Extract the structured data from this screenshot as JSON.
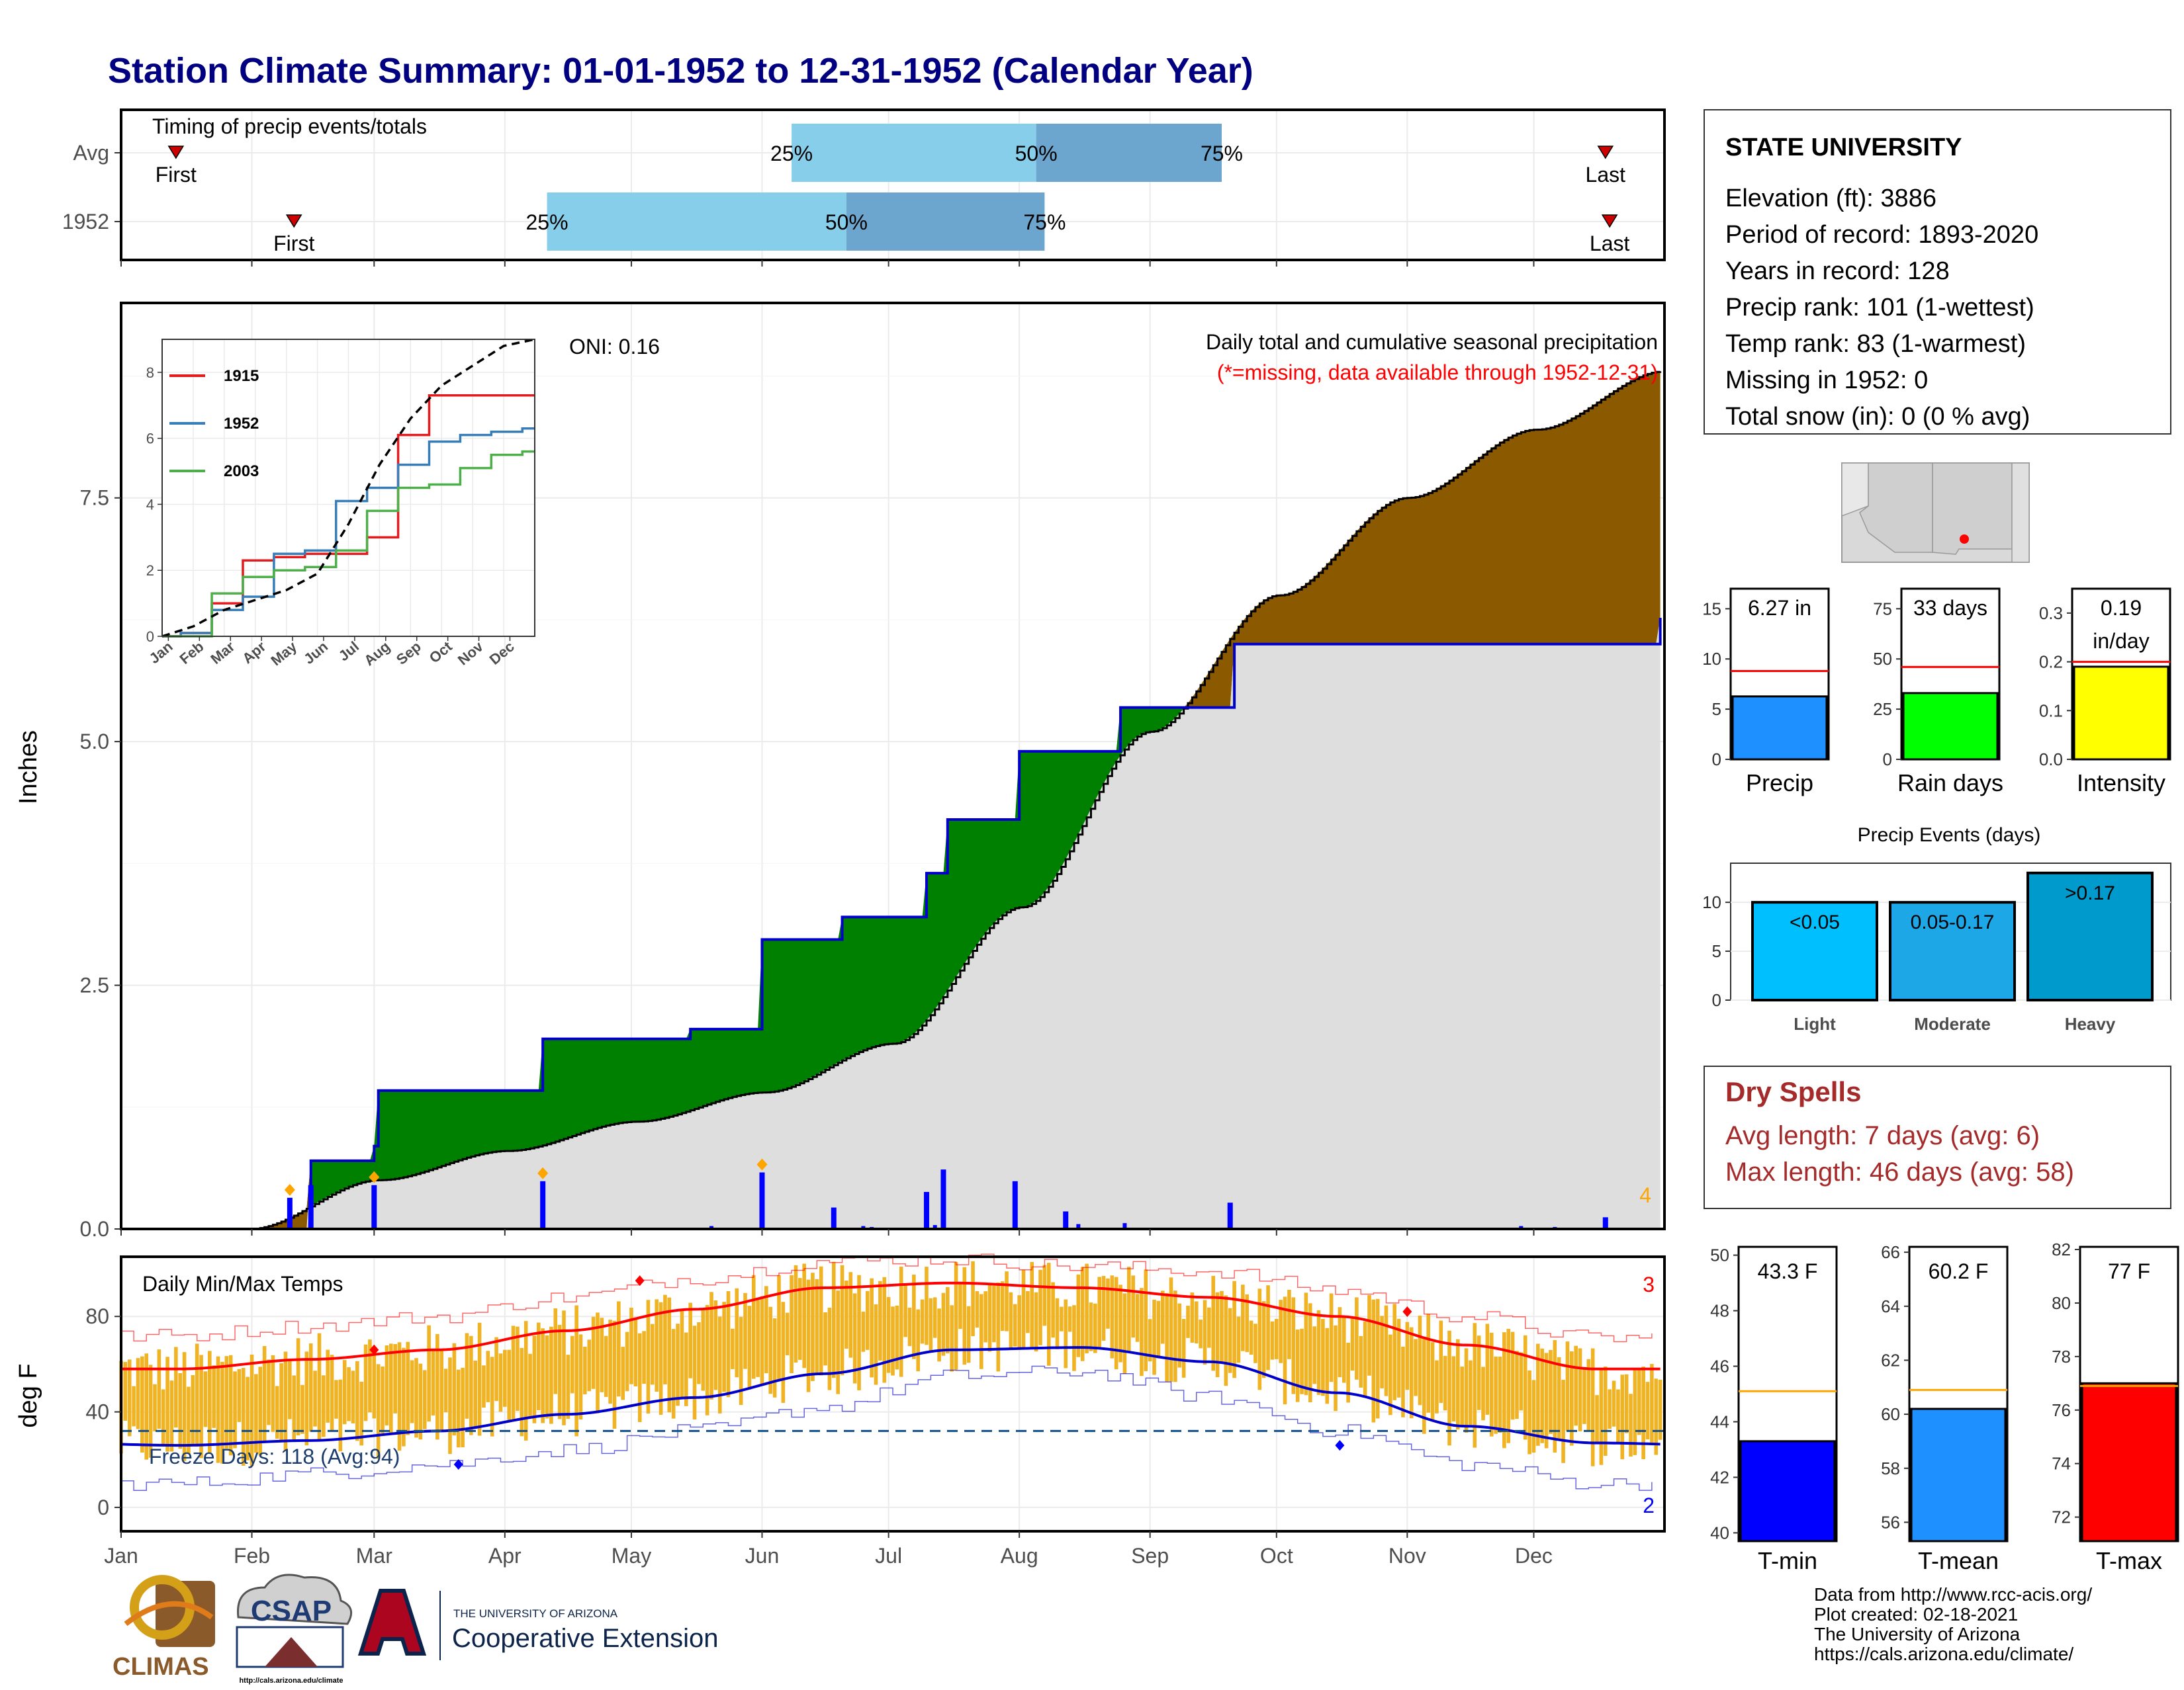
{
  "title": "Station Climate Summary: 01-01-1952 to 12-31-1952 (Calendar Year)",
  "colors": {
    "title": "#000080",
    "pct_light": "#87ceeb",
    "pct_dark": "#6ca5cd",
    "excess": "#008000",
    "deficit": "#8b5a00",
    "normal_fill": "#dedede",
    "precip_bar": "#0000ff",
    "temp_bar": "#f0b323",
    "tmax_line": "#ff0000",
    "tmin_line": "#0000cd",
    "freeze_line": "#104e8b",
    "marker": "#ffa500"
  },
  "timing_panel": {
    "title": "Timing of precip events/totals",
    "rows": [
      {
        "label": "Avg",
        "first_label": "First",
        "last_label": "Last",
        "first_day": 14,
        "last_day": 353,
        "p25_day": 160,
        "p50_day": 218,
        "p75_day": 262,
        "p25_label": "25%",
        "p50_label": "50%",
        "p75_label": "75%"
      },
      {
        "label": "1952",
        "first_label": "First",
        "last_label": "Last",
        "first_day": 42,
        "last_day": 354,
        "p25_day": 102,
        "p50_day": 173,
        "p75_day": 220,
        "p25_label": "25%",
        "p50_label": "50%",
        "p75_label": "75%"
      }
    ]
  },
  "precip_panel": {
    "ylabel": "Inches",
    "yticks": [
      "0.0",
      "2.5",
      "5.0",
      "7.5"
    ],
    "subtitle": "Daily total and cumulative seasonal precipitation",
    "note": "(*=missing, data available through 1952-12-31)",
    "oni": "ONI: 0.16",
    "corner_count": "4"
  },
  "inset": {
    "yticks": [
      "0",
      "2",
      "4",
      "6",
      "8"
    ],
    "months": [
      "Jan",
      "Feb",
      "Mar",
      "Apr",
      "May",
      "Jun",
      "Jul",
      "Aug",
      "Sep",
      "Oct",
      "Nov",
      "Dec"
    ],
    "legend": [
      {
        "name": "1915",
        "color": "#e41a1c"
      },
      {
        "name": "1952",
        "color": "#377eb8"
      },
      {
        "name": "2003",
        "color": "#4daf4a"
      }
    ]
  },
  "temp_panel": {
    "ylabel": "deg F",
    "title": "Daily Min/Max Temps",
    "yticks": [
      "0",
      "40",
      "80"
    ],
    "freeze_label": "Freeze Days: 118 (Avg:94)",
    "count_top": "3",
    "count_bottom": "2"
  },
  "months": [
    "Jan",
    "Feb",
    "Mar",
    "Apr",
    "May",
    "Jun",
    "Jul",
    "Aug",
    "Sep",
    "Oct",
    "Nov",
    "Dec"
  ],
  "info_box": {
    "name": "STATE UNIVERSITY",
    "lines": [
      "Elevation (ft): 3886",
      "Period of record: 1893-2020",
      "Years in record: 128",
      "Precip rank: 101 (1-wettest)",
      "Temp rank: 83 (1-warmest)",
      "Missing in 1952: 0",
      "Total snow (in): 0 (0 % avg)"
    ]
  },
  "mini_bars": [
    {
      "label": "Precip",
      "value_label": "6.27 in",
      "value": 6.27,
      "avg": 8.8,
      "max": 17,
      "ticks": [
        "0",
        "5",
        "10",
        "15"
      ],
      "tick_vals": [
        0,
        5,
        10,
        15
      ],
      "color": "#1e90ff"
    },
    {
      "label": "Rain days",
      "value_label": "33 days",
      "value": 33,
      "avg": 46,
      "max": 85,
      "ticks": [
        "0",
        "25",
        "50",
        "75"
      ],
      "tick_vals": [
        0,
        25,
        50,
        75
      ],
      "color": "#00ff00"
    },
    {
      "label": "Intensity",
      "value_label": "0.19\nin/day",
      "value": 0.19,
      "avg": 0.2,
      "max": 0.35,
      "ticks": [
        "0.0",
        "0.1",
        "0.2",
        "0.3"
      ],
      "tick_vals": [
        0,
        0.1,
        0.2,
        0.3
      ],
      "color": "#ffff00"
    }
  ],
  "precip_events": {
    "title": "Precip Events (days)",
    "yticks": [
      "0",
      "5",
      "10"
    ],
    "bars": [
      {
        "label": "Light",
        "bin": "<0.05",
        "value": 10,
        "color": "#00bfff"
      },
      {
        "label": "Moderate",
        "bin": "0.05-0.17",
        "value": 10,
        "color": "#1ea7e6"
      },
      {
        "label": "Heavy",
        "bin": ">0.17",
        "value": 13,
        "color": "#009acd"
      }
    ]
  },
  "dry_spells": {
    "title": "Dry Spells",
    "lines": [
      "Avg length: 7 days (avg: 6)",
      "Max length: 46 days (avg: 58)"
    ]
  },
  "temp_bars": [
    {
      "label": "T-min",
      "value_label": "43.3 F",
      "value": 43.3,
      "avg": 45.1,
      "min": 39.7,
      "max": 50.3,
      "ticks": [
        "40",
        "42",
        "44",
        "46",
        "48",
        "50"
      ],
      "tick_vals": [
        40,
        42,
        44,
        46,
        48,
        50
      ],
      "color": "#0000ff"
    },
    {
      "label": "T-mean",
      "value_label": "60.2 F",
      "value": 60.2,
      "avg": 60.9,
      "min": 55.3,
      "max": 66.2,
      "ticks": [
        "56",
        "58",
        "60",
        "62",
        "64",
        "66"
      ],
      "tick_vals": [
        56,
        58,
        60,
        62,
        64,
        66
      ],
      "color": "#1e90ff"
    },
    {
      "label": "T-max",
      "value_label": "77 F",
      "value": 77.0,
      "avg": 76.9,
      "min": 71.1,
      "max": 82.1,
      "ticks": [
        "72",
        "74",
        "76",
        "78",
        "80",
        "82"
      ],
      "tick_vals": [
        72,
        74,
        76,
        78,
        80,
        82
      ],
      "color": "#ff0000"
    }
  ],
  "credits": [
    "Data from http://www.rcc-acis.org/",
    "Plot created: 02-18-2021",
    "The University of Arizona",
    "https://cals.arizona.edu/climate/"
  ],
  "logos": {
    "climas": "CLIMAS",
    "csap": "CSAP",
    "ua_small": "THE UNIVERSITY OF ARIZONA",
    "coop": "Cooperative Extension",
    "csap_url": "http://cals.arizona.edu/climate"
  },
  "chart_data": [
    {
      "type": "line",
      "title": "Daily total and cumulative seasonal precipitation",
      "ylabel": "Inches",
      "ylim": [
        0,
        9.5
      ],
      "x_unit": "month",
      "series": [
        {
          "name": "1952",
          "x": [
            "01-01",
            "02-15",
            "03-01",
            "03-02",
            "04-10",
            "05-15",
            "06-01",
            "06-20",
            "07-10",
            "07-15",
            "08-01",
            "08-25",
            "09-21",
            "12-31"
          ],
          "values": [
            0.0,
            0.7,
            0.85,
            1.42,
            1.95,
            2.05,
            2.97,
            3.2,
            3.65,
            4.2,
            4.9,
            5.35,
            6.0,
            6.27
          ]
        },
        {
          "values": [
            0.0,
            0.5,
            0.8,
            1.1,
            1.4,
            1.9,
            3.3,
            5.1,
            6.5,
            7.5,
            8.2,
            8.8
          ]
        }
      ],
      "daily_precip_events": [
        {
          "x": "02-10",
          "value": 0.32
        },
        {
          "x": "02-15",
          "value": 0.45
        },
        {
          "x": "03-01",
          "value": 0.45
        },
        {
          "x": "04-10",
          "value": 0.49
        },
        {
          "x": "06-01",
          "value": 0.58
        },
        {
          "x": "06-18",
          "value": 0.22
        },
        {
          "x": "07-10",
          "value": 0.38
        },
        {
          "x": "07-14",
          "value": 0.61
        },
        {
          "x": "07-31",
          "value": 0.49
        },
        {
          "x": "08-12",
          "value": 0.18
        },
        {
          "x": "09-20",
          "value": 0.27
        },
        {
          "x": "12-18",
          "value": 0.12
        }
      ]
    },
    {
      "type": "line",
      "xlabel": "",
      "ylim": [
        0,
        9
      ],
      "categories": [
        "Jan",
        "Feb",
        "Mar",
        "Apr",
        "May",
        "Jun",
        "Jul",
        "Aug",
        "Sep",
        "Oct",
        "Nov",
        "Dec"
      ],
      "series": [
        {
          "name": "1915",
          "values": [
            0.1,
            1.0,
            2.3,
            2.4,
            2.5,
            2.5,
            3.0,
            6.1,
            7.3,
            7.3,
            7.3,
            7.3
          ]
        },
        {
          "name": "1952",
          "values": [
            0.1,
            0.8,
            1.2,
            2.5,
            2.6,
            4.1,
            4.5,
            5.2,
            5.9,
            6.1,
            6.2,
            6.3
          ]
        },
        {
          "name": "2003",
          "values": [
            0.0,
            1.3,
            1.8,
            2.0,
            2.1,
            2.6,
            3.8,
            4.5,
            4.6,
            5.1,
            5.5,
            5.6
          ]
        },
        {
          "values": [
            0.3,
            0.8,
            1.1,
            1.4,
            1.9,
            3.4,
            5.2,
            6.6,
            7.6,
            8.2,
            8.8,
            9.0
          ]
        }
      ]
    },
    {
      "type": "line",
      "title": "Daily Min/Max Temps",
      "ylabel": "deg F",
      "ylim": [
        -10,
        105
      ],
      "categories": [
        "Jan",
        "Feb",
        "Mar",
        "Apr",
        "May",
        "Jun",
        "Jul",
        "Aug",
        "Sep",
        "Oct",
        "Nov",
        "Dec"
      ],
      "series": [
        {
          "values": [
            58,
            62,
            66,
            74,
            83,
            92,
            94,
            92,
            88,
            80,
            68,
            58
          ]
        },
        {
          "values": [
            26,
            28,
            32,
            39,
            46,
            56,
            66,
            67,
            61,
            48,
            34,
            27
          ]
        },
        {
          "values": [
            72,
            76,
            80,
            88,
            96,
            103,
            104,
            101,
            99,
            91,
            80,
            71
          ]
        },
        {
          "values": [
            10,
            14,
            18,
            24,
            32,
            42,
            55,
            57,
            46,
            32,
            18,
            10
          ]
        }
      ],
      "freeze_threshold": 32
    }
  ]
}
